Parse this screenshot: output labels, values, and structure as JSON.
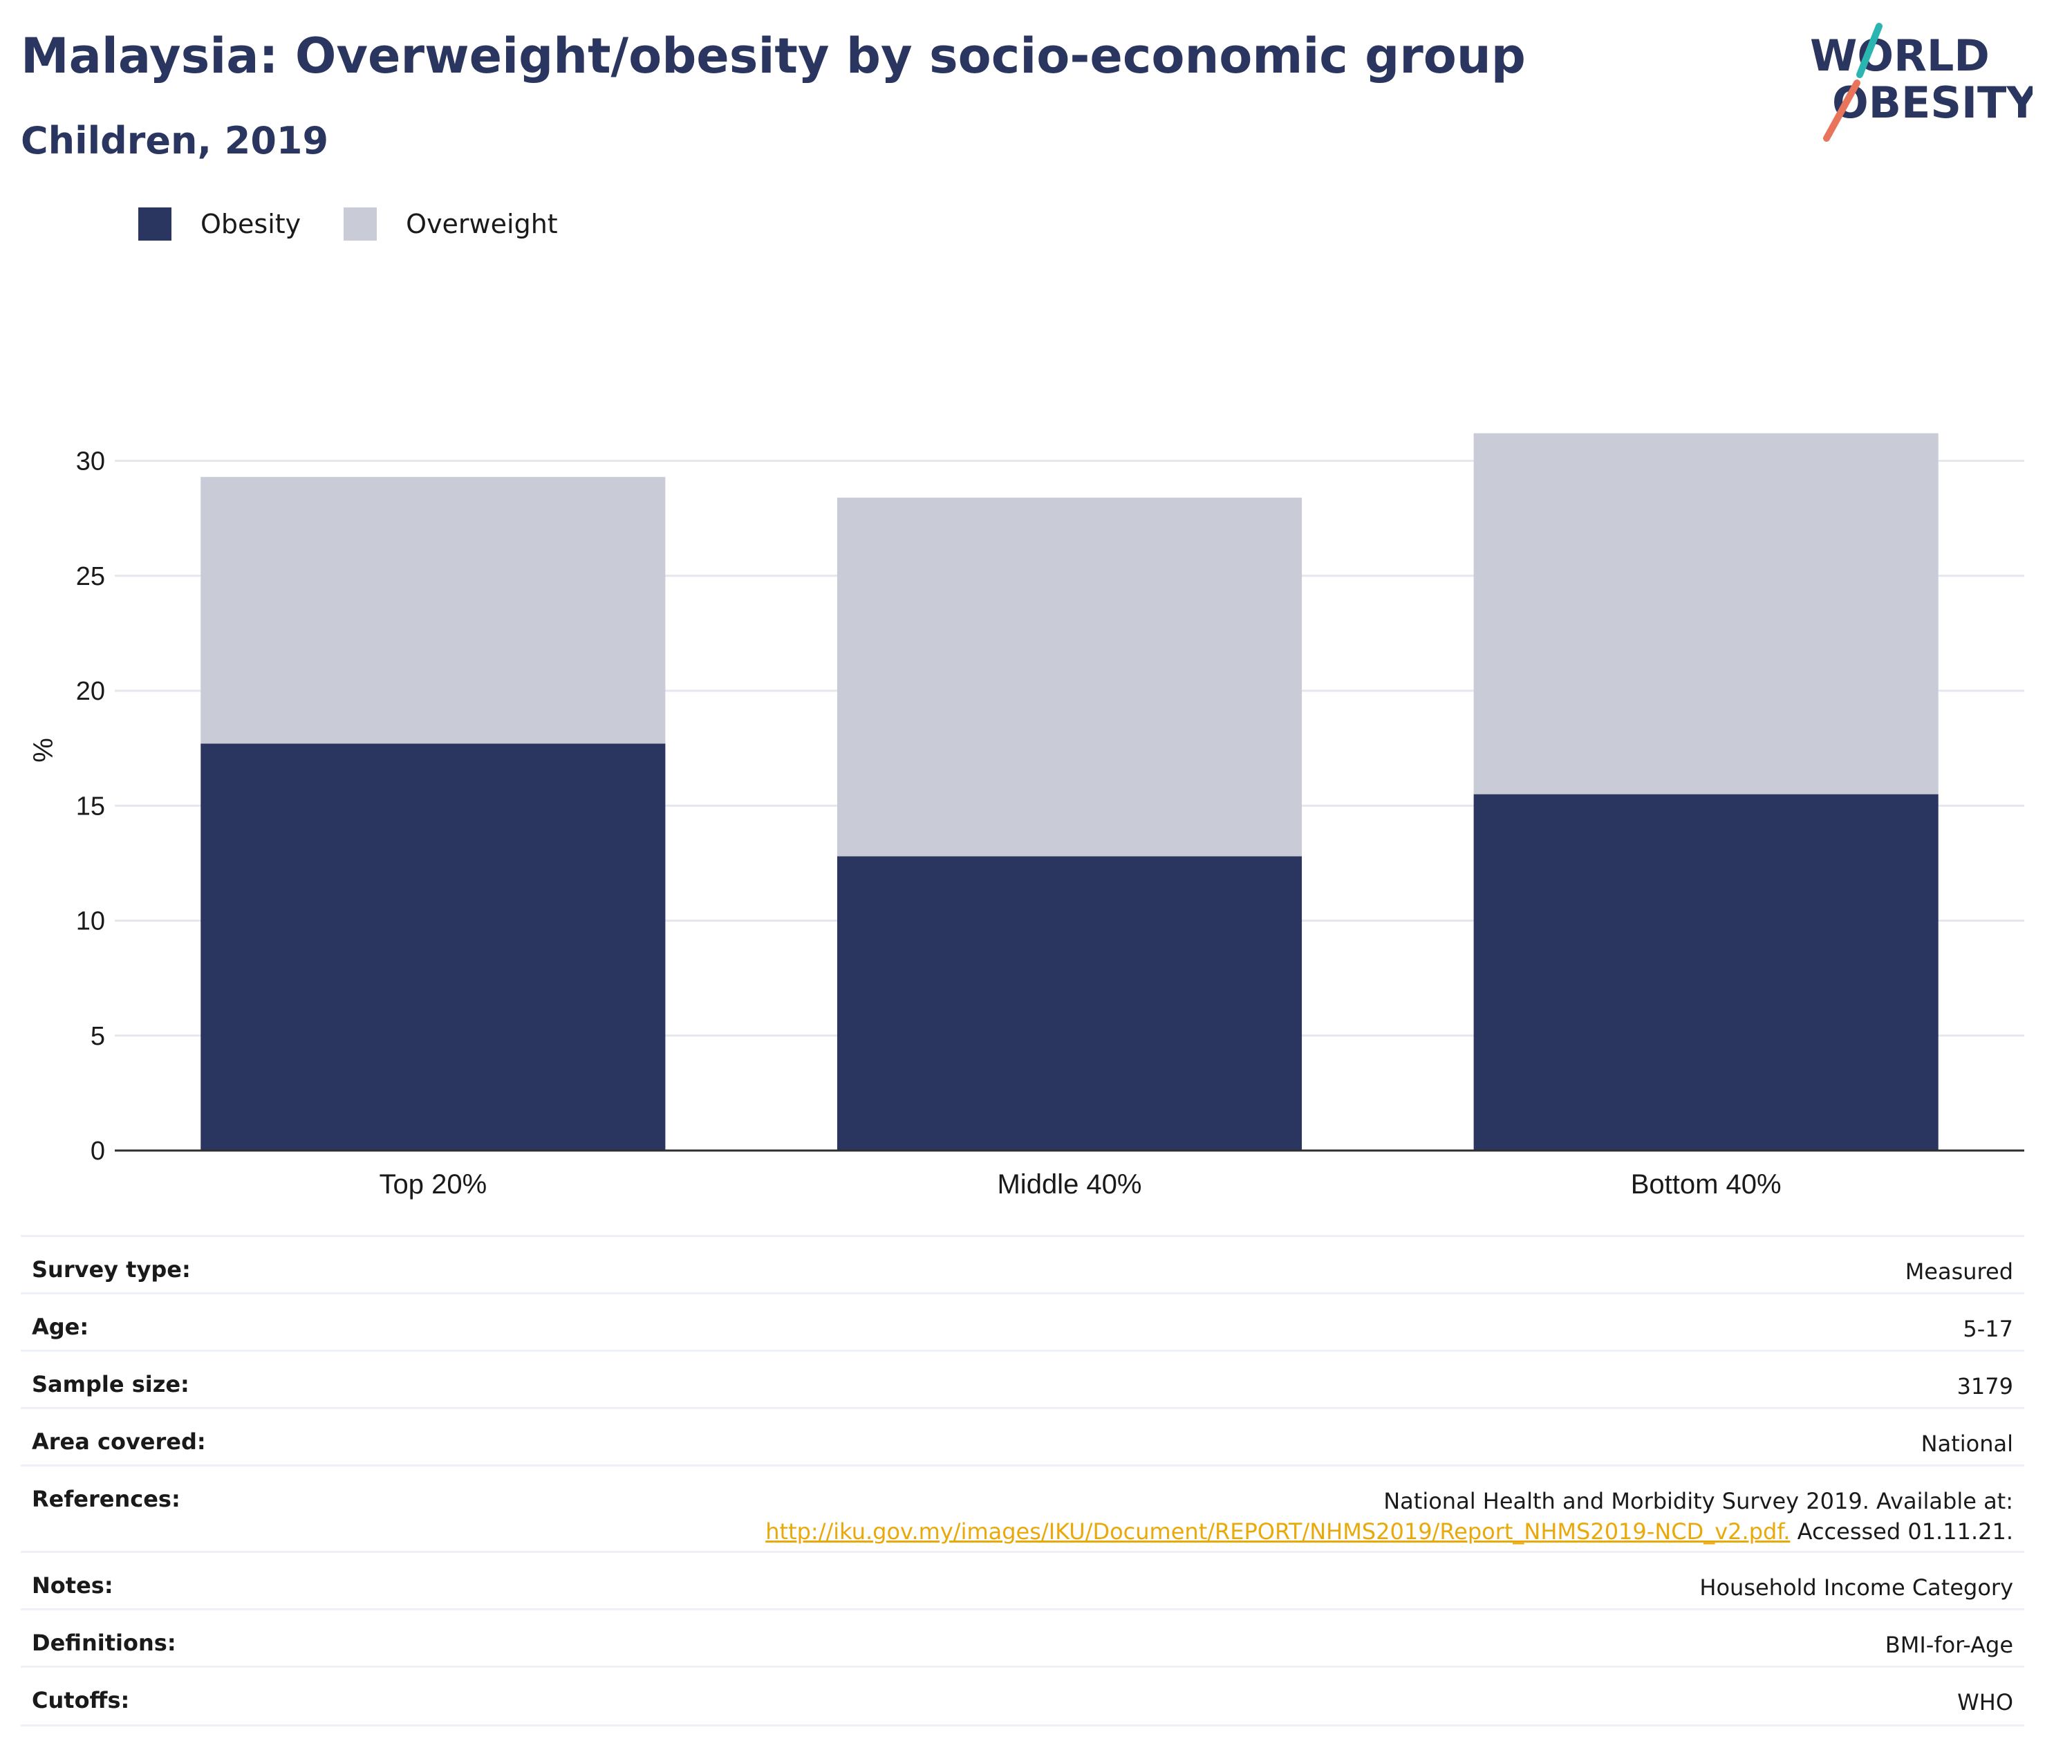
{
  "header": {
    "title": "Malaysia: Overweight/obesity by socio-economic group",
    "subtitle": "Children, 2019"
  },
  "logo": {
    "line1": "WORLD",
    "line2": "OBESITY"
  },
  "legend": [
    {
      "label": "Obesity",
      "color": "#2a365f"
    },
    {
      "label": "Overweight",
      "color": "#c9cbd6"
    }
  ],
  "chart_data": {
    "type": "bar",
    "stacked": true,
    "categories": [
      "Top 20%",
      "Middle 40%",
      "Bottom 40%"
    ],
    "series": [
      {
        "name": "Obesity",
        "color": "#2a365f",
        "values": [
          17.7,
          12.8,
          15.5
        ]
      },
      {
        "name": "Overweight",
        "color": "#c9cbd6",
        "values": [
          11.6,
          15.6,
          15.7
        ]
      }
    ],
    "ylabel": "%",
    "ylim": [
      0,
      32
    ],
    "yticks": [
      0,
      5,
      10,
      15,
      20,
      25,
      30
    ],
    "grid": true,
    "legend_position": "top-left"
  },
  "info": {
    "rows": [
      {
        "label": "Survey type:",
        "value": "Measured"
      },
      {
        "label": "Age:",
        "value": "5-17"
      },
      {
        "label": "Sample size:",
        "value": "3179"
      },
      {
        "label": "Area covered:",
        "value": "National"
      },
      {
        "label": "References:",
        "value": "National Health and Morbidity Survey 2019. Available at:",
        "link": "http://iku.gov.my/images/IKU/Document/REPORT/NHMS2019/Report_NHMS2019-NCD_v2.pdf.",
        "suffix": " Accessed 01.11.21."
      },
      {
        "label": "Notes:",
        "value": "Household Income Category"
      },
      {
        "label": "Definitions:",
        "value": "BMI-for-Age"
      },
      {
        "label": "Cutoffs:",
        "value": "WHO"
      }
    ]
  }
}
